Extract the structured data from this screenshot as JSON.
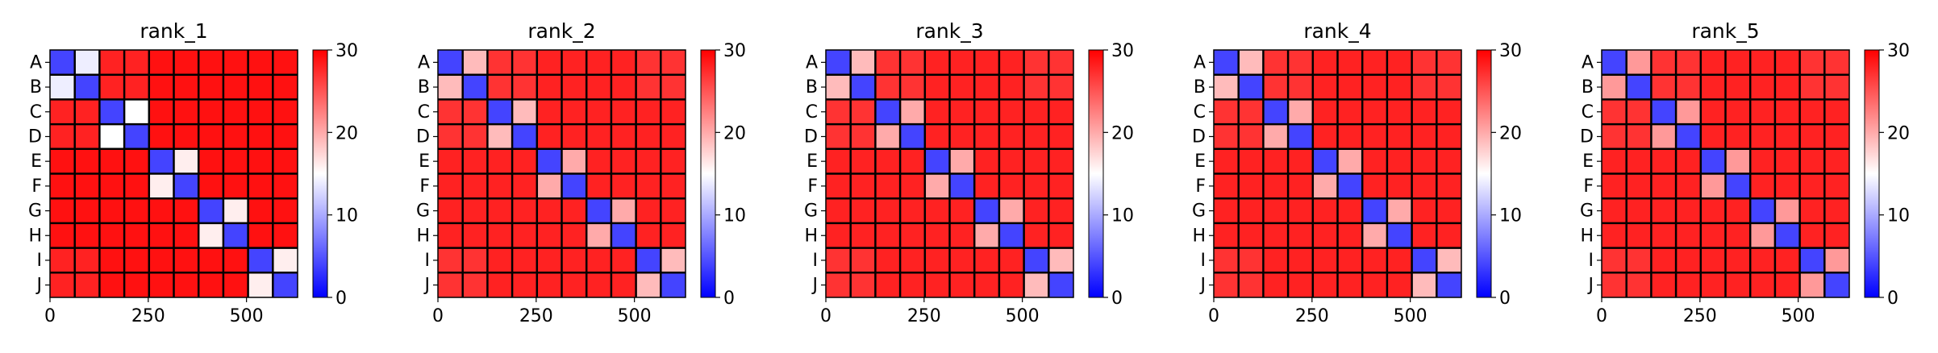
{
  "colormap": {
    "low": "#0000ff",
    "mid": "#ffffff",
    "high": "#ff0000"
  },
  "chart_data": [
    {
      "type": "heatmap",
      "title": "rank_1",
      "row_labels": [
        "A",
        "B",
        "C",
        "D",
        "E",
        "F",
        "G",
        "H",
        "I",
        "J"
      ],
      "x_ticks": [
        0,
        250,
        500
      ],
      "x_range": [
        0,
        630
      ],
      "block_size": 63,
      "colorbar": {
        "range": [
          0,
          30
        ],
        "ticks": [
          0,
          10,
          20,
          30
        ]
      },
      "block_values": [
        [
          4,
          14,
          28,
          28,
          29,
          29,
          29,
          29,
          29,
          29
        ],
        [
          14,
          4,
          28,
          28,
          29,
          29,
          29,
          29,
          29,
          29
        ],
        [
          28,
          28,
          4,
          15,
          29,
          29,
          29,
          29,
          29,
          29
        ],
        [
          28,
          28,
          15,
          4,
          29,
          29,
          29,
          29,
          29,
          29
        ],
        [
          29,
          29,
          29,
          29,
          4,
          16,
          29,
          29,
          29,
          29
        ],
        [
          29,
          29,
          29,
          29,
          16,
          4,
          29,
          29,
          29,
          29
        ],
        [
          29,
          29,
          29,
          29,
          29,
          29,
          4,
          16,
          29,
          29
        ],
        [
          29,
          29,
          29,
          29,
          29,
          29,
          16,
          4,
          29,
          29
        ],
        [
          28,
          28,
          29,
          29,
          29,
          29,
          29,
          29,
          4,
          16
        ],
        [
          28,
          28,
          29,
          29,
          29,
          29,
          29,
          29,
          16,
          4
        ]
      ]
    },
    {
      "type": "heatmap",
      "title": "rank_2",
      "row_labels": [
        "A",
        "B",
        "C",
        "D",
        "E",
        "F",
        "G",
        "H",
        "I",
        "J"
      ],
      "x_ticks": [
        0,
        250,
        500
      ],
      "x_range": [
        0,
        630
      ],
      "block_size": 63,
      "colorbar": {
        "range": [
          0,
          30
        ],
        "ticks": [
          0,
          10,
          20,
          30
        ]
      },
      "block_values": [
        [
          4,
          19,
          27,
          27,
          28,
          28,
          28,
          28,
          27,
          27
        ],
        [
          19,
          4,
          27,
          27,
          28,
          28,
          28,
          28,
          27,
          27
        ],
        [
          27,
          27,
          4,
          19,
          28,
          28,
          28,
          28,
          28,
          28
        ],
        [
          27,
          27,
          19,
          4,
          28,
          28,
          28,
          28,
          28,
          28
        ],
        [
          28,
          28,
          28,
          28,
          4,
          20,
          28,
          28,
          28,
          28
        ],
        [
          28,
          28,
          28,
          28,
          20,
          4,
          28,
          28,
          28,
          28
        ],
        [
          28,
          28,
          28,
          28,
          28,
          28,
          4,
          20,
          28,
          28
        ],
        [
          28,
          28,
          28,
          28,
          28,
          28,
          20,
          4,
          28,
          28
        ],
        [
          27,
          27,
          28,
          28,
          28,
          28,
          28,
          28,
          4,
          19
        ],
        [
          27,
          27,
          28,
          28,
          28,
          28,
          28,
          28,
          19,
          4
        ]
      ]
    },
    {
      "type": "heatmap",
      "title": "rank_3",
      "row_labels": [
        "A",
        "B",
        "C",
        "D",
        "E",
        "F",
        "G",
        "H",
        "I",
        "J"
      ],
      "x_ticks": [
        0,
        250,
        500
      ],
      "x_range": [
        0,
        630
      ],
      "block_size": 63,
      "colorbar": {
        "range": [
          0,
          30
        ],
        "ticks": [
          0,
          10,
          20,
          30
        ]
      },
      "block_values": [
        [
          4,
          19,
          27,
          27,
          28,
          28,
          28,
          28,
          27,
          27
        ],
        [
          19,
          4,
          27,
          27,
          28,
          28,
          28,
          28,
          27,
          27
        ],
        [
          27,
          27,
          4,
          20,
          28,
          28,
          28,
          28,
          28,
          28
        ],
        [
          27,
          27,
          20,
          4,
          28,
          28,
          28,
          28,
          28,
          28
        ],
        [
          28,
          28,
          28,
          28,
          4,
          20,
          28,
          28,
          28,
          28
        ],
        [
          28,
          28,
          28,
          28,
          20,
          4,
          28,
          28,
          28,
          28
        ],
        [
          28,
          28,
          28,
          28,
          28,
          28,
          4,
          20,
          28,
          28
        ],
        [
          28,
          28,
          28,
          28,
          28,
          28,
          20,
          4,
          28,
          28
        ],
        [
          27,
          27,
          28,
          28,
          28,
          28,
          28,
          28,
          4,
          19
        ],
        [
          27,
          27,
          28,
          28,
          28,
          28,
          28,
          28,
          19,
          4
        ]
      ]
    },
    {
      "type": "heatmap",
      "title": "rank_4",
      "row_labels": [
        "A",
        "B",
        "C",
        "D",
        "E",
        "F",
        "G",
        "H",
        "I",
        "J"
      ],
      "x_ticks": [
        0,
        250,
        500
      ],
      "x_range": [
        0,
        630
      ],
      "block_size": 63,
      "colorbar": {
        "range": [
          0,
          30
        ],
        "ticks": [
          0,
          10,
          20,
          30
        ]
      },
      "block_values": [
        [
          4,
          19,
          27,
          27,
          28,
          28,
          28,
          28,
          27,
          27
        ],
        [
          19,
          4,
          27,
          27,
          28,
          28,
          28,
          28,
          27,
          27
        ],
        [
          27,
          27,
          4,
          20,
          28,
          28,
          28,
          28,
          28,
          28
        ],
        [
          27,
          27,
          20,
          4,
          28,
          28,
          28,
          28,
          28,
          28
        ],
        [
          28,
          28,
          28,
          28,
          4,
          20,
          28,
          28,
          28,
          28
        ],
        [
          28,
          28,
          28,
          28,
          20,
          4,
          28,
          28,
          28,
          28
        ],
        [
          28,
          28,
          28,
          28,
          28,
          28,
          4,
          20,
          28,
          28
        ],
        [
          28,
          28,
          28,
          28,
          28,
          28,
          20,
          4,
          28,
          28
        ],
        [
          27,
          27,
          28,
          28,
          28,
          28,
          28,
          28,
          4,
          19
        ],
        [
          27,
          27,
          28,
          28,
          28,
          28,
          28,
          28,
          19,
          4
        ]
      ]
    },
    {
      "type": "heatmap",
      "title": "rank_5",
      "row_labels": [
        "A",
        "B",
        "C",
        "D",
        "E",
        "F",
        "G",
        "H",
        "I",
        "J"
      ],
      "x_ticks": [
        0,
        250,
        500
      ],
      "x_range": [
        0,
        630
      ],
      "block_size": 63,
      "colorbar": {
        "range": [
          0,
          30
        ],
        "ticks": [
          0,
          10,
          20,
          30
        ]
      },
      "block_values": [
        [
          4,
          21,
          27,
          27,
          28,
          28,
          28,
          28,
          27,
          27
        ],
        [
          21,
          4,
          27,
          27,
          28,
          28,
          28,
          28,
          27,
          27
        ],
        [
          27,
          27,
          4,
          21,
          28,
          28,
          28,
          28,
          28,
          28
        ],
        [
          27,
          27,
          21,
          4,
          28,
          28,
          28,
          28,
          28,
          28
        ],
        [
          28,
          28,
          28,
          28,
          4,
          21,
          28,
          28,
          28,
          28
        ],
        [
          28,
          28,
          28,
          28,
          21,
          4,
          28,
          28,
          28,
          28
        ],
        [
          28,
          28,
          28,
          28,
          28,
          28,
          4,
          21,
          28,
          28
        ],
        [
          28,
          28,
          28,
          28,
          28,
          28,
          21,
          4,
          28,
          28
        ],
        [
          27,
          27,
          28,
          28,
          28,
          28,
          28,
          28,
          4,
          21
        ],
        [
          27,
          27,
          28,
          28,
          28,
          28,
          28,
          28,
          21,
          4
        ]
      ]
    }
  ]
}
